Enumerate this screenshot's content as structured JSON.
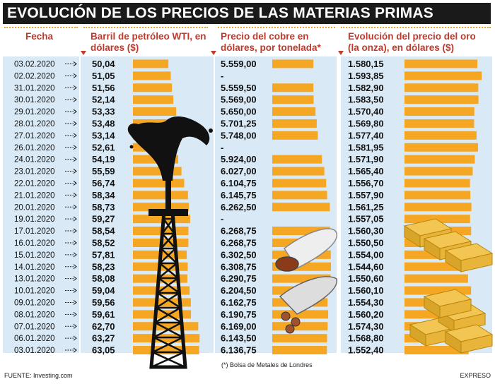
{
  "title": "EVOLUCIÓN DE LOS PRECIOS DE LAS MATERIAS PRIMAS",
  "headers": {
    "date": "Fecha",
    "oil": "Barril de petróleo WTI, en dólares ($)",
    "copper": "Precio del cobre en dólares, por tonelada*",
    "gold": "Evolución del precio del oro (la onza), en dólares ($)"
  },
  "note": "(*) Bolsa de Metales de Londres",
  "source": "FUENTE: Investing.com",
  "credit": "EXPRESO",
  "colors": {
    "bar": "#f5a623",
    "panel": "#d9e9f5",
    "header": "#c0392b",
    "title_bg": "#1a1a1a"
  },
  "chart_data": {
    "type": "table",
    "categories": [
      "03.02.2020",
      "02.02.2020",
      "31.01.2020",
      "30.01.2020",
      "29.01.2020",
      "28.01.2020",
      "27.01.2020",
      "26.01.2020",
      "24.01.2020",
      "23.01.2020",
      "22.01.2020",
      "21.01.2020",
      "20.01.2020",
      "19.01.2020",
      "17.01.2020",
      "16.01.2020",
      "15.01.2020",
      "14.01.2020",
      "13.01.2020",
      "10.01.2020",
      "09.01.2020",
      "08.01.2020",
      "07.01.2020",
      "06.01.2020",
      "03.01.2020"
    ],
    "series": [
      {
        "name": "Barril de petróleo WTI, en dólares ($)",
        "values": [
          50.04,
          51.05,
          51.56,
          52.14,
          53.33,
          53.48,
          53.14,
          52.61,
          54.19,
          55.59,
          56.74,
          58.34,
          58.73,
          59.27,
          58.54,
          58.52,
          57.81,
          58.23,
          58.08,
          59.04,
          59.56,
          59.61,
          62.7,
          63.27,
          63.05
        ],
        "labels": [
          "50,04",
          "51,05",
          "51,56",
          "52,14",
          "53,33",
          "53,48",
          "53,14",
          "52,61",
          "54,19",
          "55,59",
          "56,74",
          "58,34",
          "58,73",
          "59,27",
          "58,54",
          "58,52",
          "57,81",
          "58,23",
          "58,08",
          "59,04",
          "59,56",
          "59,61",
          "62,70",
          "63,27",
          "63,05"
        ]
      },
      {
        "name": "Precio del cobre en dólares, por tonelada*",
        "values": [
          5559.0,
          null,
          5559.5,
          5569.0,
          5650.0,
          5701.25,
          5748.0,
          null,
          5924.0,
          6027.0,
          6104.75,
          6145.75,
          6262.5,
          null,
          6268.75,
          6268.75,
          6302.5,
          6308.75,
          6290.75,
          6204.5,
          6162.75,
          6190.75,
          6169.0,
          6143.5,
          6136.75
        ],
        "labels": [
          "5.559,00",
          "-",
          "5.559,50",
          "5.569,00",
          "5.650,00",
          "5.701,25",
          "5.748,00",
          "-",
          "5.924,00",
          "6.027,00",
          "6.104,75",
          "6.145,75",
          "6.262,50",
          "-",
          "6.268,75",
          "6.268,75",
          "6.302,50",
          "6.308,75",
          "6.290,75",
          "6.204,50",
          "6.162,75",
          "6.190,75",
          "6.169,00",
          "6.143,50",
          "6.136,75"
        ]
      },
      {
        "name": "Evolución del precio del oro (la onza), en dólares ($)",
        "values": [
          1580.15,
          1593.85,
          1582.9,
          1583.5,
          1570.4,
          1569.8,
          1577.4,
          1581.95,
          1571.9,
          1565.4,
          1556.7,
          1557.9,
          1561.25,
          1557.05,
          1560.3,
          1550.5,
          1554.0,
          1544.6,
          1550.6,
          1560.1,
          1554.3,
          1560.2,
          1574.3,
          1568.8,
          1552.4
        ],
        "labels": [
          "1.580,15",
          "1.593,85",
          "1.582,90",
          "1.583,50",
          "1.570,40",
          "1.569,80",
          "1.577,40",
          "1.581,95",
          "1.571,90",
          "1.565,40",
          "1.556,70",
          "1.557,90",
          "1.561,25",
          "1.557,05",
          "1.560,30",
          "1.550,50",
          "1.554,00",
          "1.544,60",
          "1.550,60",
          "1.560,10",
          "1.554,30",
          "1.560,20",
          "1.574,30",
          "1.568,80",
          "1.552,40"
        ]
      }
    ]
  }
}
